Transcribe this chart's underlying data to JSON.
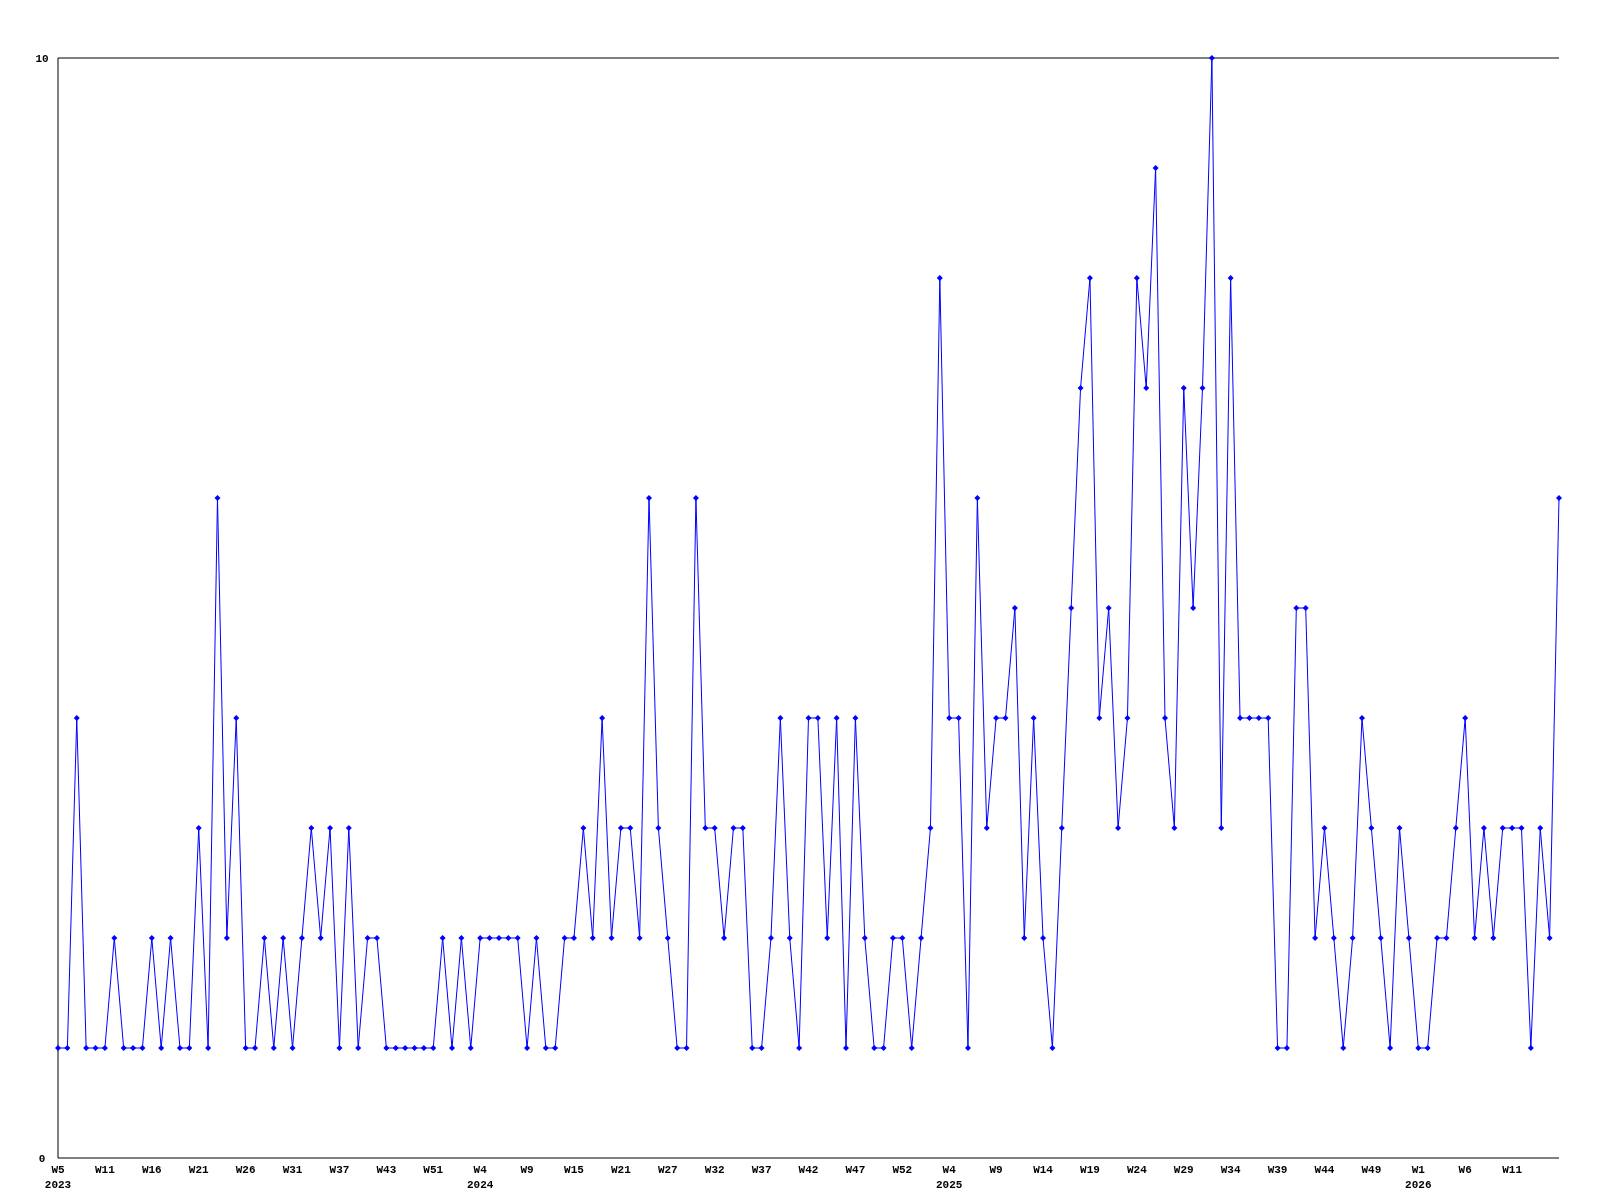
{
  "chart_data": {
    "type": "line",
    "categories": [
      "W5\n2023",
      null,
      null,
      null,
      null,
      "W11",
      null,
      null,
      null,
      null,
      "W16",
      null,
      null,
      null,
      null,
      "W21",
      null,
      null,
      null,
      null,
      "W26",
      null,
      null,
      null,
      null,
      "W31",
      null,
      null,
      null,
      null,
      "W37",
      null,
      null,
      null,
      null,
      "W43",
      null,
      null,
      null,
      null,
      "W51",
      null,
      null,
      null,
      null,
      "W4\n2024",
      null,
      null,
      null,
      null,
      "W9",
      null,
      null,
      null,
      null,
      "W15",
      null,
      null,
      null,
      null,
      "W21",
      null,
      null,
      null,
      null,
      "W27",
      null,
      null,
      null,
      null,
      "W32",
      null,
      null,
      null,
      null,
      "W37",
      null,
      null,
      null,
      null,
      "W42",
      null,
      null,
      null,
      null,
      "W47",
      null,
      null,
      null,
      null,
      "W52",
      null,
      null,
      null,
      null,
      "W4\n2025",
      null,
      null,
      null,
      null,
      "W9",
      null,
      null,
      null,
      null,
      "W14",
      null,
      null,
      null,
      null,
      "W19",
      null,
      null,
      null,
      null,
      "W24",
      null,
      null,
      null,
      null,
      "W29",
      null,
      null,
      null,
      null,
      "W34",
      null,
      null,
      null,
      null,
      "W39",
      null,
      null,
      null,
      null,
      "W44",
      null,
      null,
      null,
      null,
      "W49",
      null,
      null,
      null,
      null,
      "W1\n2026",
      null,
      null,
      null,
      null,
      "W6",
      null,
      null,
      null,
      null,
      "W11",
      null,
      null,
      null,
      null,
      null
    ],
    "series": [
      {
        "color": "#0000ff",
        "values": [
          1,
          1,
          4,
          1,
          1,
          1,
          2,
          1,
          1,
          1,
          2,
          1,
          2,
          1,
          1,
          3,
          1,
          6,
          2,
          4,
          1,
          1,
          2,
          1,
          2,
          1,
          2,
          3,
          2,
          3,
          1,
          3,
          1,
          2,
          2,
          1,
          1,
          1,
          1,
          1,
          1,
          2,
          1,
          2,
          1,
          2,
          2,
          2,
          2,
          2,
          1,
          2,
          1,
          1,
          2,
          2,
          3,
          2,
          4,
          2,
          3,
          3,
          2,
          6,
          3,
          2,
          1,
          1,
          6,
          3,
          3,
          2,
          3,
          3,
          1,
          1,
          2,
          4,
          2,
          1,
          4,
          4,
          2,
          4,
          1,
          4,
          2,
          1,
          1,
          2,
          2,
          1,
          2,
          3,
          8,
          4,
          4,
          1,
          6,
          3,
          4,
          4,
          5,
          2,
          4,
          2,
          1,
          3,
          5,
          7,
          8,
          4,
          5,
          3,
          4,
          8,
          7,
          9,
          4,
          3,
          7,
          5,
          7,
          10,
          3,
          8,
          4,
          4,
          4,
          4,
          1,
          1,
          5,
          5,
          2,
          3,
          2,
          1,
          2,
          4,
          3,
          2,
          1,
          3,
          2,
          1,
          1,
          2,
          2,
          3,
          4,
          2,
          3,
          2,
          3,
          3,
          3,
          1,
          3,
          2,
          6
        ]
      }
    ],
    "ylim": [
      0,
      10
    ],
    "yticks": [
      0,
      10
    ],
    "marker": "diamond",
    "line_style": "solid"
  }
}
